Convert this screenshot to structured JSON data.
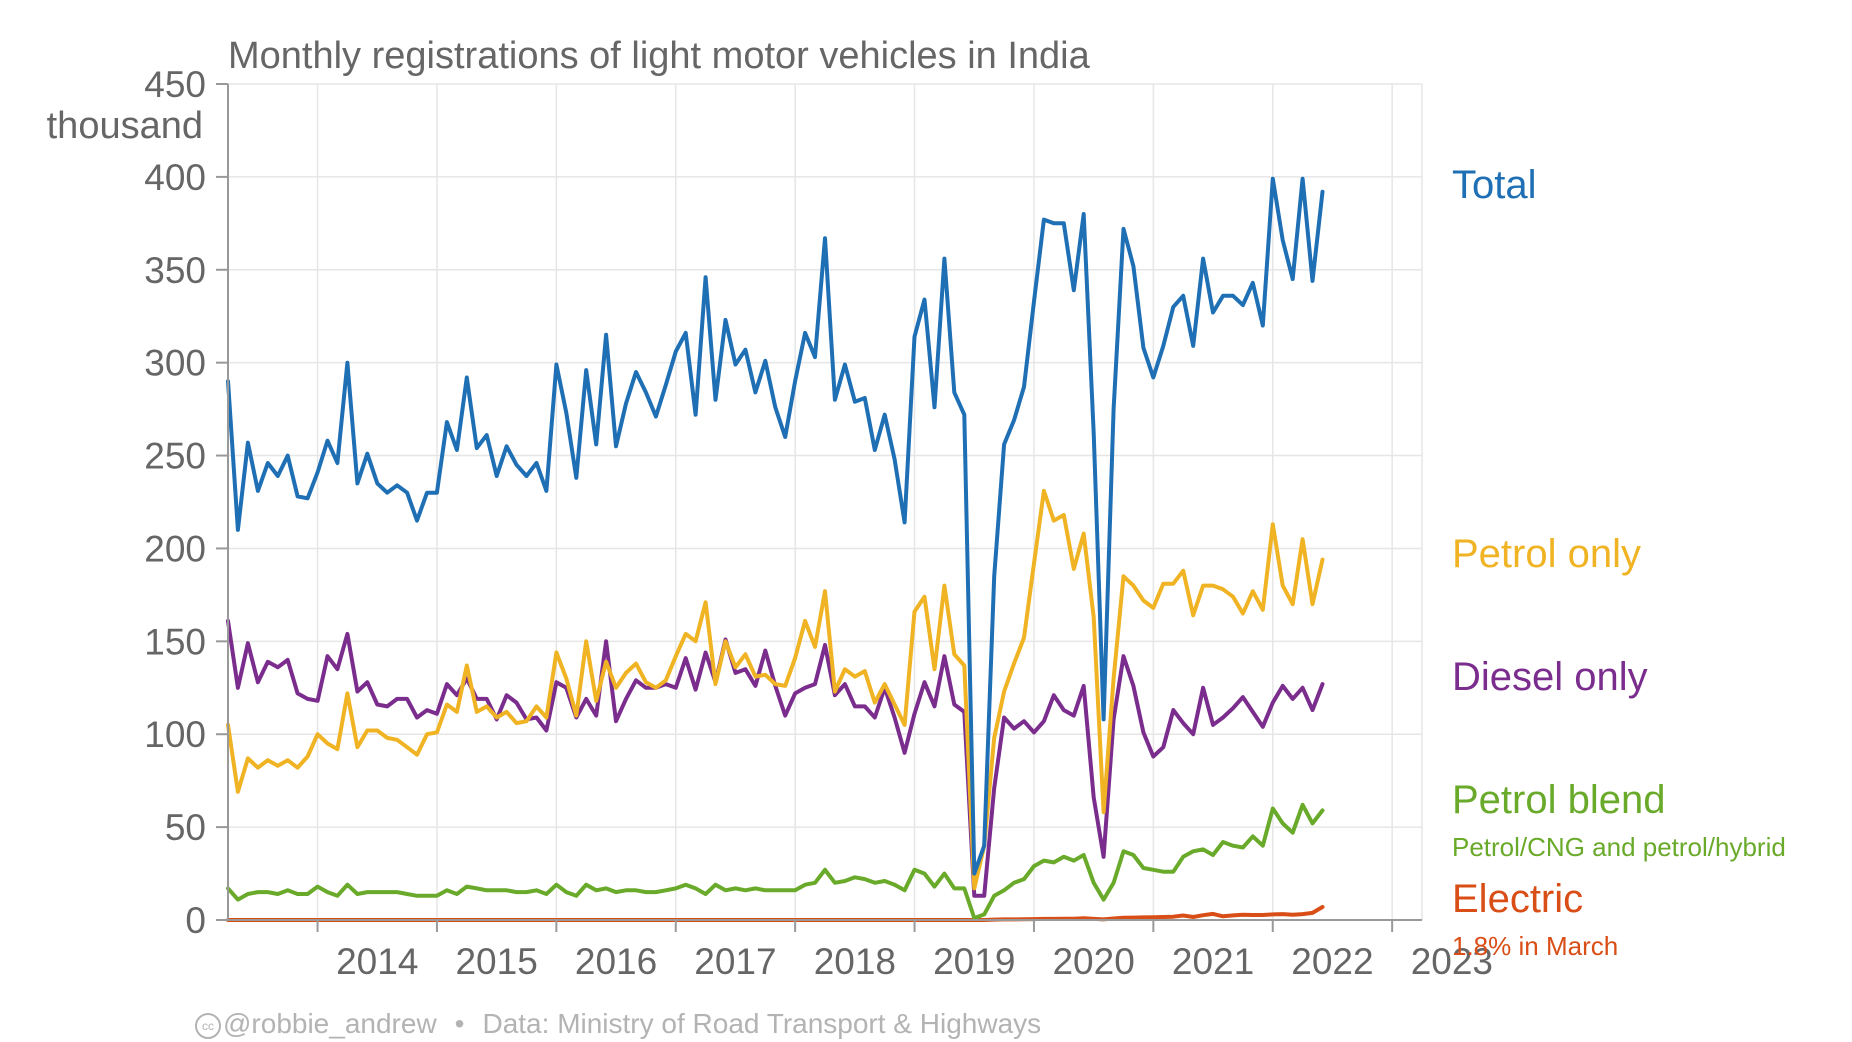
{
  "chart_data": {
    "type": "line",
    "title": "Monthly registrations of light motor vehicles in India",
    "y_unit_label": "thousand",
    "ylim": [
      0,
      450
    ],
    "y_ticks": [
      0,
      50,
      100,
      150,
      200,
      250,
      300,
      350,
      400,
      450
    ],
    "x_range": [
      "2013-04",
      "2023-04"
    ],
    "x_ticks": [
      "2014",
      "2015",
      "2016",
      "2017",
      "2018",
      "2019",
      "2020",
      "2021",
      "2022",
      "2023"
    ],
    "grid": true,
    "legend": "right-labels",
    "start_month": "2013-04",
    "series": [
      {
        "name": "Total",
        "color": "#1f6fb5",
        "values": [
          290,
          210,
          257,
          231,
          246,
          239,
          250,
          228,
          227,
          241,
          258,
          246,
          300,
          235,
          251,
          235,
          230,
          234,
          230,
          215,
          230,
          230,
          268,
          253,
          292,
          254,
          261,
          239,
          255,
          245,
          239,
          246,
          231,
          299,
          273,
          238,
          296,
          256,
          315,
          255,
          278,
          295,
          284,
          271,
          288,
          306,
          316,
          272,
          346,
          280,
          323,
          299,
          307,
          284,
          301,
          276,
          260,
          290,
          316,
          303,
          367,
          280,
          299,
          279,
          281,
          253,
          272,
          248,
          214,
          314,
          334,
          276,
          356,
          284,
          272,
          25,
          40,
          185,
          256,
          269,
          287,
          333,
          377,
          375,
          375,
          339,
          380,
          262,
          108,
          275,
          372,
          352,
          308,
          292,
          309,
          330,
          336,
          309,
          356,
          327,
          336,
          336,
          331,
          343,
          320,
          399,
          366,
          345,
          399,
          344,
          392
        ],
        "end_label": "Total",
        "note": ""
      },
      {
        "name": "Petrol only",
        "color": "#f0b323",
        "values": [
          105,
          69,
          87,
          82,
          86,
          83,
          86,
          82,
          88,
          100,
          95,
          92,
          122,
          93,
          102,
          102,
          98,
          97,
          93,
          89,
          100,
          101,
          116,
          112,
          137,
          112,
          115,
          109,
          112,
          106,
          107,
          115,
          109,
          144,
          130,
          110,
          150,
          118,
          139,
          125,
          133,
          138,
          128,
          125,
          129,
          142,
          154,
          150,
          171,
          127,
          150,
          136,
          143,
          131,
          132,
          127,
          126,
          141,
          161,
          147,
          177,
          123,
          135,
          131,
          134,
          117,
          127,
          116,
          105,
          166,
          174,
          135,
          180,
          143,
          137,
          17,
          40,
          98,
          123,
          138,
          152,
          192,
          231,
          215,
          218,
          189,
          208,
          163,
          58,
          130,
          185,
          180,
          172,
          168,
          181,
          181,
          188,
          164,
          180,
          180,
          178,
          174,
          165,
          177,
          167,
          213,
          180,
          170,
          205,
          170,
          194
        ],
        "end_label": "Petrol only",
        "note": ""
      },
      {
        "name": "Diesel only",
        "color": "#7b2d8e",
        "values": [
          161,
          125,
          149,
          128,
          139,
          136,
          140,
          122,
          119,
          118,
          142,
          135,
          154,
          123,
          128,
          116,
          115,
          119,
          119,
          109,
          113,
          111,
          127,
          121,
          130,
          119,
          119,
          108,
          121,
          117,
          108,
          109,
          102,
          128,
          125,
          109,
          119,
          110,
          150,
          107,
          119,
          129,
          125,
          125,
          127,
          125,
          141,
          124,
          144,
          128,
          151,
          133,
          135,
          126,
          145,
          126,
          110,
          122,
          125,
          127,
          148,
          121,
          127,
          115,
          115,
          109,
          125,
          109,
          90,
          111,
          128,
          115,
          142,
          116,
          112,
          13,
          13,
          71,
          109,
          103,
          107,
          101,
          107,
          121,
          113,
          110,
          126,
          66,
          34,
          108,
          142,
          126,
          101,
          88,
          93,
          113,
          106,
          100,
          125,
          105,
          109,
          114,
          120,
          112,
          104,
          117,
          126,
          119,
          125,
          113,
          127
        ],
        "end_label": "Diesel only",
        "note": ""
      },
      {
        "name": "Petrol blend",
        "color": "#6aaa2a",
        "values": [
          17,
          11,
          14,
          15,
          15,
          14,
          16,
          14,
          14,
          18,
          15,
          13,
          19,
          14,
          15,
          15,
          15,
          15,
          14,
          13,
          13,
          13,
          16,
          14,
          18,
          17,
          16,
          16,
          16,
          15,
          15,
          16,
          14,
          19,
          15,
          13,
          19,
          16,
          17,
          15,
          16,
          16,
          15,
          15,
          16,
          17,
          19,
          17,
          14,
          19,
          16,
          17,
          16,
          17,
          16,
          16,
          16,
          16,
          19,
          20,
          27,
          20,
          21,
          23,
          22,
          20,
          21,
          19,
          16,
          27,
          25,
          18,
          25,
          17,
          17,
          1,
          3,
          13,
          16,
          20,
          22,
          29,
          32,
          31,
          34,
          32,
          35,
          20,
          11,
          20,
          37,
          35,
          28,
          27,
          26,
          26,
          34,
          37,
          38,
          35,
          42,
          40,
          39,
          45,
          40,
          60,
          52,
          47,
          62,
          52,
          59
        ],
        "end_label": "Petrol blend",
        "note": "Petrol/CNG and petrol/hybrid"
      },
      {
        "name": "Electric",
        "color": "#d84e16",
        "values": [
          0,
          0,
          0,
          0,
          0,
          0,
          0,
          0,
          0,
          0,
          0,
          0,
          0,
          0,
          0,
          0,
          0,
          0,
          0,
          0,
          0,
          0,
          0,
          0,
          0,
          0,
          0,
          0,
          0,
          0,
          0,
          0,
          0,
          0,
          0,
          0,
          0,
          0,
          0,
          0,
          0,
          0,
          0,
          0,
          0,
          0,
          0,
          0,
          0,
          0,
          0,
          0,
          0,
          0,
          0,
          0,
          0,
          0,
          0,
          0,
          0,
          0,
          0,
          0,
          0,
          0,
          0,
          0,
          0,
          0,
          0,
          0,
          0,
          0,
          0,
          0,
          0,
          0.2,
          0.3,
          0.3,
          0.4,
          0.5,
          0.6,
          0.6,
          0.7,
          0.7,
          0.9,
          0.6,
          0.3,
          0.8,
          1.2,
          1.3,
          1.4,
          1.5,
          1.6,
          1.8,
          2.4,
          1.6,
          2.6,
          3.3,
          2.0,
          2.5,
          2.8,
          2.7,
          2.7,
          3.0,
          3.2,
          2.8,
          3.2,
          3.8,
          7.0
        ],
        "end_label": "Electric",
        "note": "1.8% in March"
      }
    ]
  },
  "footer": {
    "cc_symbol": "cc",
    "author": "@robbie_andrew",
    "separator": "•",
    "source": "Data: Ministry of Road Transport & Highways"
  }
}
